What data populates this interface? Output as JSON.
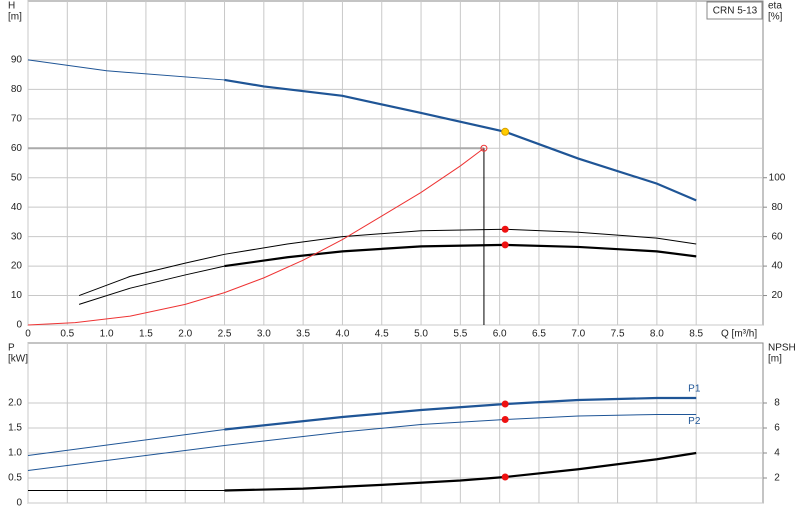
{
  "chart_data": [
    {
      "type": "line",
      "annotation": "CRN 5-13",
      "ylabel": [
        "H",
        "[m]"
      ],
      "y2label": [
        "eta",
        "[%]"
      ],
      "xlabel": "Q [m³/h]",
      "xlim": [
        0,
        9.35
      ],
      "ylim": [
        0,
        110
      ],
      "y2lim": [
        0,
        220
      ],
      "xticks": [
        0,
        0.5,
        {
          "value": 1,
          "label": "1.0"
        },
        1.5,
        {
          "value": 2,
          "label": "2.0"
        },
        2.5,
        {
          "value": 3,
          "label": "3.0"
        },
        3.5,
        {
          "value": 4,
          "label": "4.0"
        },
        4.5,
        {
          "value": 5,
          "label": "5.0"
        },
        5.5,
        {
          "value": 6,
          "label": "6.0"
        },
        6.5,
        {
          "value": 7,
          "label": "7.0"
        },
        7.5,
        {
          "value": 8,
          "label": "8.0"
        },
        8.5
      ],
      "yticks": [
        0,
        10,
        20,
        30,
        40,
        50,
        60,
        70,
        80,
        90
      ],
      "y2ticks": [
        20,
        40,
        60,
        80,
        100
      ],
      "grid": true,
      "series": [
        {
          "color": "#1f5596",
          "bold_from": 2.5,
          "x": [
            0,
            1,
            2.5,
            3,
            4,
            5,
            6.07,
            7,
            8,
            8.5
          ],
          "values": [
            90,
            86.3,
            83.2,
            81,
            77.8,
            72,
            65.6,
            56.5,
            48,
            42.3
          ]
        },
        {
          "color": "#000000",
          "axis": "y2",
          "x": [
            0.65,
            1.3,
            2,
            2.5,
            3.3,
            4,
            5,
            6.07,
            7,
            8,
            8.5
          ],
          "values": [
            20,
            33,
            42,
            48,
            55,
            60,
            64,
            65,
            63,
            59,
            55
          ]
        },
        {
          "color": "#000000",
          "axis": "y2",
          "bold_from": 2.5,
          "x": [
            0.65,
            1.3,
            2,
            2.5,
            3.3,
            4,
            5,
            6.07,
            7,
            8,
            8.5
          ],
          "values": [
            14,
            25,
            34,
            40,
            46,
            50,
            53.4,
            54.4,
            53,
            50,
            46.6
          ]
        },
        {
          "color": "#ee3333",
          "x": [
            0,
            0.6,
            1.3,
            2,
            2.5,
            3,
            3.5,
            4,
            4.5,
            5,
            5.5,
            5.8
          ],
          "values": [
            0,
            0.8,
            3,
            7,
            11,
            16,
            22,
            29,
            37,
            45,
            54,
            60
          ]
        }
      ],
      "duty_point": {
        "x": 5.8,
        "y": 60,
        "color": "#ee3333"
      },
      "markers": [
        {
          "x": 6.07,
          "y": 65.6,
          "color": "#ffcc00"
        },
        {
          "x": 6.07,
          "y": 65,
          "axis": "y2",
          "color": "#ee1111"
        },
        {
          "x": 6.07,
          "y": 54.4,
          "axis": "y2",
          "color": "#ee1111"
        }
      ]
    },
    {
      "type": "line",
      "ylabel": [
        "P",
        "[kW]"
      ],
      "y2label": [
        "NPSH",
        "[m]"
      ],
      "xlim": [
        0,
        9.35
      ],
      "ylim": [
        0,
        3.2
      ],
      "y2lim": [
        0,
        12.8
      ],
      "xticks": [
        0,
        0.5,
        1,
        1.5,
        2,
        2.5,
        3,
        3.5,
        4,
        4.5,
        5,
        5.5,
        6,
        6.5,
        7,
        7.5,
        8,
        8.5
      ],
      "show_xtick_labels": false,
      "yticks": [
        0,
        0.5,
        {
          "value": 1,
          "label": "1.0"
        },
        1.5,
        {
          "value": 2,
          "label": "2.0"
        }
      ],
      "y2ticks": [
        2,
        4,
        6,
        8
      ],
      "grid": true,
      "series": [
        {
          "name": "P1",
          "color": "#1f5596",
          "bold_from": 2.5,
          "x": [
            0,
            2.5,
            4,
            5,
            6.07,
            7,
            8,
            8.5
          ],
          "values": [
            0.95,
            1.47,
            1.72,
            1.86,
            1.98,
            2.06,
            2.1,
            2.1
          ]
        },
        {
          "name": "P2",
          "color": "#1f5596",
          "x": [
            0,
            2.5,
            4,
            5,
            6.07,
            7,
            8,
            8.5
          ],
          "values": [
            0.65,
            1.15,
            1.42,
            1.57,
            1.67,
            1.74,
            1.77,
            1.77
          ]
        },
        {
          "color": "#000000",
          "axis": "y2",
          "bold_from": 2.5,
          "x": [
            0,
            2.5,
            3.5,
            4.5,
            5.5,
            6.07,
            7,
            8,
            8.5
          ],
          "values": [
            1,
            1,
            1.15,
            1.45,
            1.8,
            2.08,
            2.7,
            3.5,
            4
          ]
        }
      ],
      "markers": [
        {
          "x": 6.07,
          "y": 1.98,
          "color": "#ee1111"
        },
        {
          "x": 6.07,
          "y": 1.67,
          "color": "#ee1111"
        },
        {
          "x": 6.07,
          "y": 2.08,
          "axis": "y2",
          "color": "#ee1111"
        }
      ]
    }
  ]
}
